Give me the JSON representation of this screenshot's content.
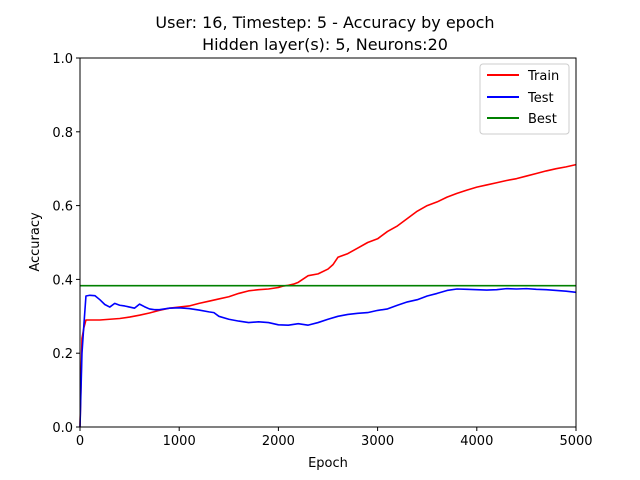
{
  "chart_data": {
    "type": "line",
    "title": "User: 16, Timestep: 5 - Accuracy by epoch",
    "subtitle": "Hidden layer(s): 5, Neurons:20",
    "xlabel": "Epoch",
    "ylabel": "Accuracy",
    "xlim": [
      0,
      5000
    ],
    "ylim": [
      0.0,
      1.0
    ],
    "xticks": [
      0,
      1000,
      2000,
      3000,
      4000,
      5000
    ],
    "xtick_labels": [
      "0",
      "1000",
      "2000",
      "3000",
      "4000",
      "5000"
    ],
    "yticks": [
      0.0,
      0.2,
      0.4,
      0.6,
      0.8,
      1.0
    ],
    "ytick_labels": [
      "0.0",
      "0.2",
      "0.4",
      "0.6",
      "0.8",
      "1.0"
    ],
    "grid": false,
    "legend_position": "top-right",
    "series": [
      {
        "name": "Train",
        "color": "#ff0000",
        "x": [
          0,
          20,
          40,
          60,
          100,
          200,
          300,
          400,
          500,
          600,
          700,
          800,
          900,
          1000,
          1100,
          1200,
          1300,
          1400,
          1500,
          1600,
          1700,
          1800,
          1900,
          2000,
          2050,
          2100,
          2150,
          2200,
          2300,
          2400,
          2500,
          2550,
          2600,
          2700,
          2800,
          2900,
          3000,
          3100,
          3200,
          3300,
          3400,
          3500,
          3600,
          3700,
          3800,
          3900,
          4000,
          4100,
          4200,
          4300,
          4400,
          4500,
          4600,
          4700,
          4800,
          4900,
          5000
        ],
        "y": [
          0.0,
          0.24,
          0.27,
          0.29,
          0.29,
          0.29,
          0.292,
          0.294,
          0.298,
          0.303,
          0.309,
          0.316,
          0.322,
          0.325,
          0.328,
          0.335,
          0.341,
          0.347,
          0.353,
          0.362,
          0.369,
          0.372,
          0.374,
          0.378,
          0.382,
          0.384,
          0.387,
          0.392,
          0.41,
          0.415,
          0.428,
          0.44,
          0.46,
          0.47,
          0.485,
          0.5,
          0.51,
          0.53,
          0.545,
          0.565,
          0.585,
          0.6,
          0.61,
          0.623,
          0.633,
          0.642,
          0.65,
          0.656,
          0.662,
          0.668,
          0.673,
          0.68,
          0.687,
          0.694,
          0.7,
          0.705,
          0.711
        ]
      },
      {
        "name": "Test",
        "color": "#0000ff",
        "x": [
          0,
          20,
          40,
          60,
          100,
          150,
          200,
          250,
          300,
          350,
          400,
          450,
          500,
          550,
          600,
          650,
          700,
          750,
          800,
          900,
          1000,
          1100,
          1200,
          1300,
          1350,
          1400,
          1500,
          1600,
          1700,
          1800,
          1900,
          2000,
          2100,
          2200,
          2300,
          2400,
          2500,
          2600,
          2700,
          2800,
          2900,
          3000,
          3100,
          3200,
          3300,
          3400,
          3500,
          3600,
          3700,
          3800,
          3900,
          4000,
          4100,
          4200,
          4300,
          4400,
          4500,
          4600,
          4700,
          4800,
          4900,
          5000
        ],
        "y": [
          0.0,
          0.2,
          0.28,
          0.355,
          0.357,
          0.356,
          0.345,
          0.332,
          0.325,
          0.335,
          0.33,
          0.328,
          0.325,
          0.322,
          0.333,
          0.326,
          0.32,
          0.318,
          0.318,
          0.322,
          0.323,
          0.321,
          0.317,
          0.312,
          0.31,
          0.3,
          0.292,
          0.287,
          0.283,
          0.285,
          0.283,
          0.277,
          0.276,
          0.28,
          0.276,
          0.283,
          0.292,
          0.3,
          0.305,
          0.308,
          0.31,
          0.316,
          0.32,
          0.33,
          0.339,
          0.345,
          0.355,
          0.362,
          0.37,
          0.374,
          0.373,
          0.372,
          0.371,
          0.372,
          0.375,
          0.374,
          0.375,
          0.373,
          0.372,
          0.37,
          0.368,
          0.365
        ]
      },
      {
        "name": "Best",
        "color": "#008000",
        "x": [
          0,
          5000
        ],
        "y": [
          0.383,
          0.383
        ]
      }
    ]
  }
}
